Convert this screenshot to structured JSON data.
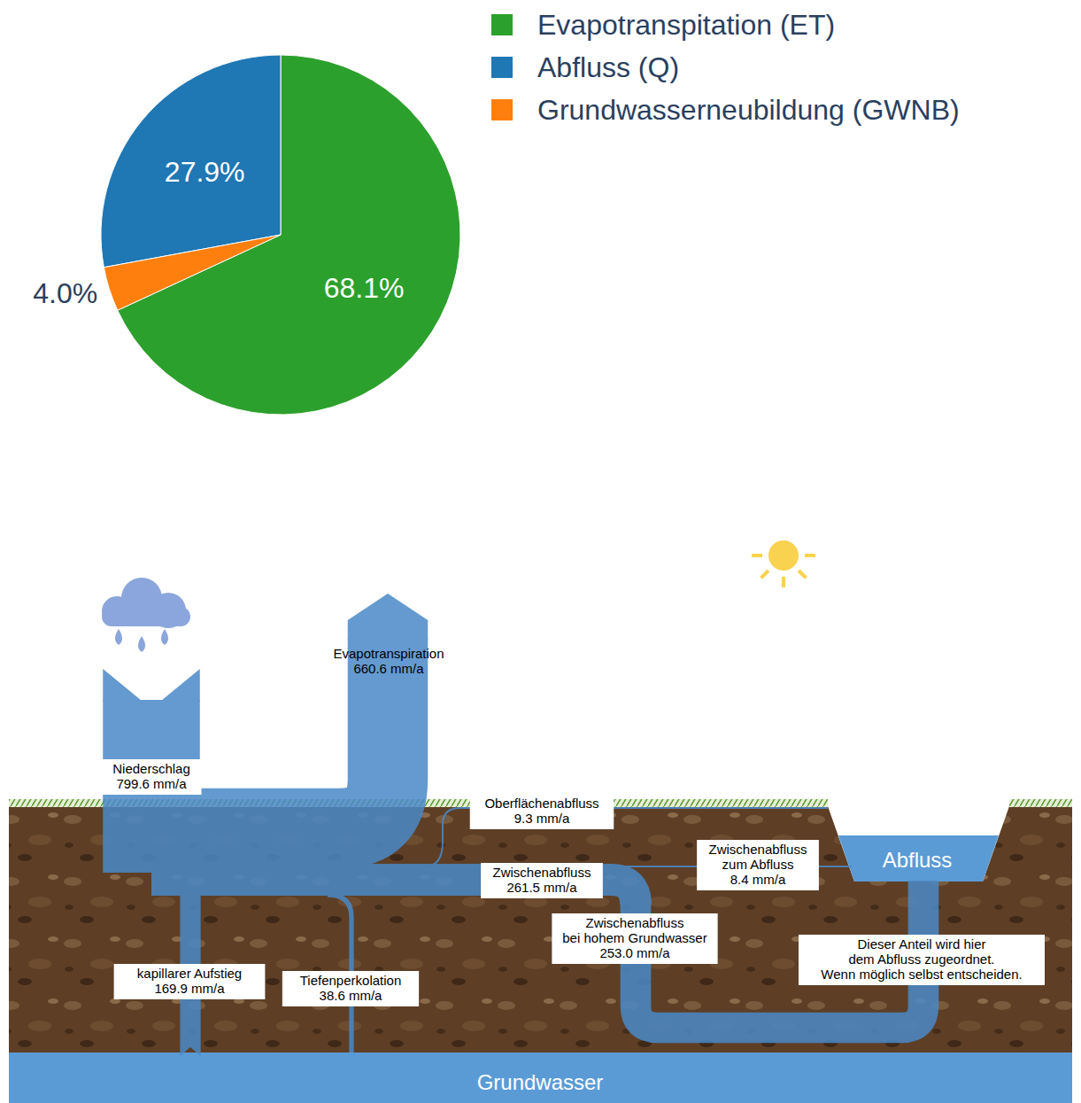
{
  "chart_data": {
    "type": "pie",
    "categories": [
      "Evapotranspitation (ET)",
      "Abfluss (Q)",
      "Grundwasserneubildung (GWNB)"
    ],
    "values": [
      68.1,
      27.9,
      4.0
    ],
    "value_labels": [
      "68.1%",
      "27.9%",
      "4.0%"
    ],
    "colors": [
      "#2ca02c",
      "#1f77b4",
      "#ff7f0e"
    ],
    "data_labels": true,
    "legend": "upper right"
  },
  "diagram": {
    "flows": {
      "niederschlag": {
        "label": [
          "Niederschlag"
        ],
        "value": 799.6,
        "value_label": "799.6 mm/a"
      },
      "evapotranspiration": {
        "label": [
          "Evapotranspiration"
        ],
        "value": 660.6,
        "value_label": "660.6 mm/a"
      },
      "oberflaechenabfluss": {
        "label": [
          "Oberflächenabfluss"
        ],
        "value": 9.3,
        "value_label": "9.3 mm/a"
      },
      "zwischenabfluss": {
        "label": [
          "Zwischenabfluss"
        ],
        "value": 261.5,
        "value_label": "261.5 mm/a"
      },
      "zwischenabfluss_zum_abfluss": {
        "label": [
          "Zwischenabfluss",
          "zum Abfluss"
        ],
        "value": 8.4,
        "value_label": "8.4 mm/a"
      },
      "zwischenabfluss_hohes_grundwasser": {
        "label": [
          "Zwischenabfluss",
          "bei hohem Grundwasser"
        ],
        "value": 253.0,
        "value_label": "253.0 mm/a"
      },
      "kapillarer_aufstieg": {
        "label": [
          "kapillarer Aufstieg"
        ],
        "value": 169.9,
        "value_label": "169.9 mm/a"
      },
      "tiefenperkolation": {
        "label": [
          "Tiefenperkolation"
        ],
        "value": 38.6,
        "value_label": "38.6 mm/a"
      }
    },
    "abfluss": "Abfluss",
    "grundwasser": "Grundwasser",
    "note": [
      "Dieser Anteil wird hier",
      "dem Abfluss zugeordnet.",
      "Wenn möglich selbst entscheiden."
    ]
  }
}
